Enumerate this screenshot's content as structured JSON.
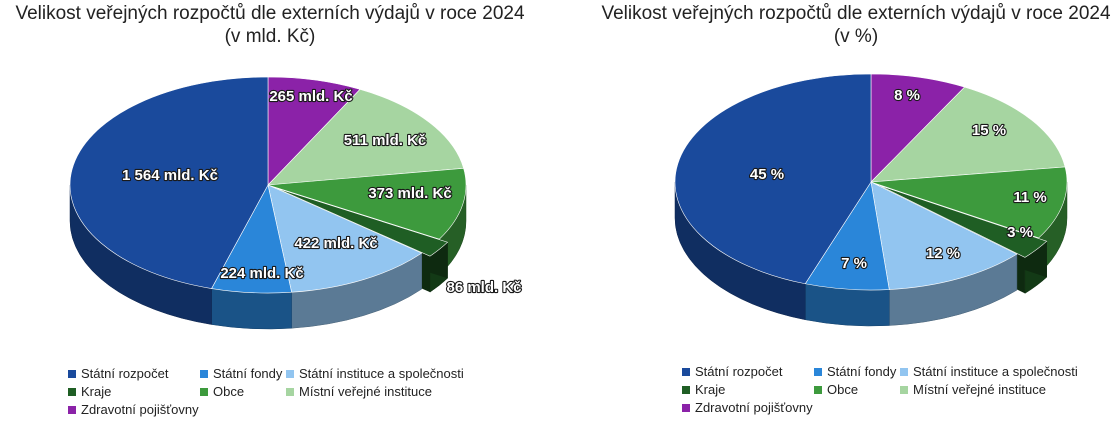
{
  "colors": {
    "statni_rozpocet": "#1a4a9c",
    "statni_fondy": "#2a86d9",
    "statni_instituce": "#92c5f0",
    "kraje": "#1f5e24",
    "obce": "#3d9a3d",
    "mistni_instituce": "#a6d5a1",
    "zdravotni_pojistovny": "#8b22a8"
  },
  "chart_data": [
    {
      "type": "pie",
      "title": "Velikost veřejných rozpočtů dle externích výdajů v roce 2024",
      "subtitle": "(v mld. Kč)",
      "categories": [
        "Státní rozpočet",
        "Státní fondy",
        "Státní instituce a společnosti",
        "Kraje",
        "Obce",
        "Místní veřejné instituce",
        "Zdravotní pojišťovny"
      ],
      "values": [
        1564,
        224,
        422,
        86,
        373,
        511,
        265
      ],
      "data_labels": [
        "1 564 mld. Kč",
        "224 mld. Kč",
        "422 mld. Kč",
        "86 mld. Kč",
        "373 mld. Kč",
        "511 mld. Kč",
        "265 mld. Kč"
      ],
      "legend_position": "bottom"
    },
    {
      "type": "pie",
      "title": "Velikost veřejných rozpočtů dle externích výdajů v roce 2024",
      "subtitle": "(v %)",
      "categories": [
        "Státní rozpočet",
        "Státní fondy",
        "Státní instituce a společnosti",
        "Kraje",
        "Obce",
        "Místní veřejné instituce",
        "Zdravotní pojišťovny"
      ],
      "values": [
        45,
        7,
        12,
        3,
        11,
        15,
        8
      ],
      "data_labels": [
        "45 %",
        "7 %",
        "12 %",
        "3 %",
        "11 %",
        "15 %",
        "8 %"
      ],
      "legend_position": "bottom"
    }
  ]
}
